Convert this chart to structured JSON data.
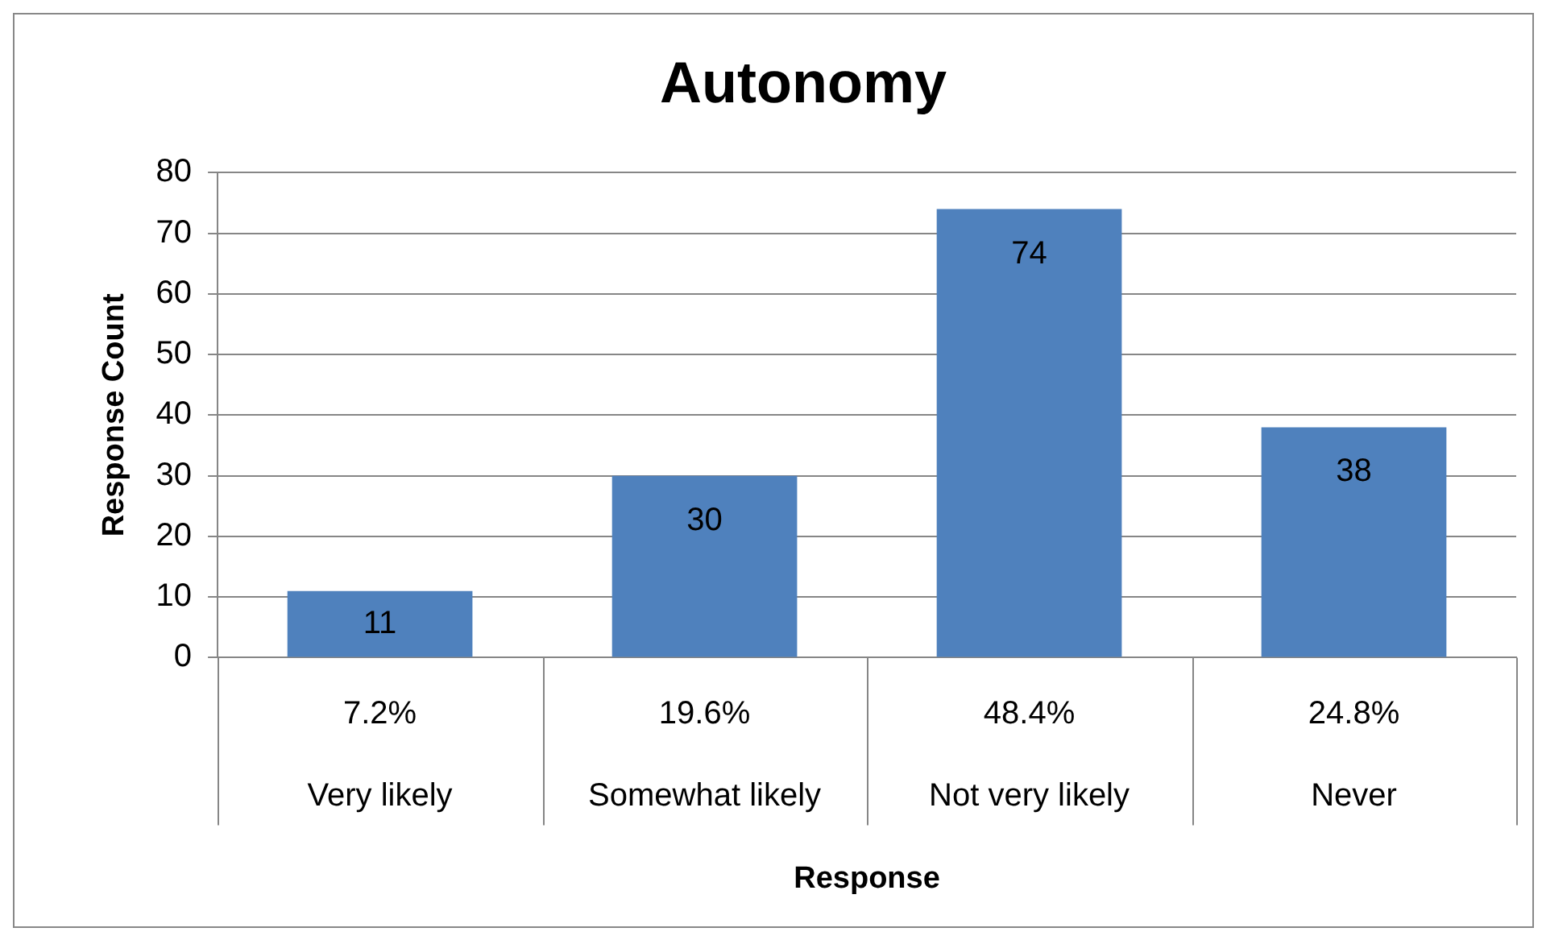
{
  "chart_data": {
    "type": "bar",
    "title": "Autonomy",
    "xlabel": "Response",
    "ylabel": "Response Count",
    "categories": [
      "Very likely",
      "Somewhat likely",
      "Not very likely",
      "Never"
    ],
    "values": [
      11,
      30,
      74,
      38
    ],
    "color": "#4f81bd",
    "ylim": [
      0,
      80
    ],
    "yticks": [
      0,
      10,
      20,
      30,
      40,
      50,
      60,
      70,
      80
    ],
    "grid": "y",
    "legend": false,
    "data_labels": true,
    "annotations": [
      "7.2%",
      "19.6%",
      "48.4%",
      "24.8%"
    ]
  }
}
